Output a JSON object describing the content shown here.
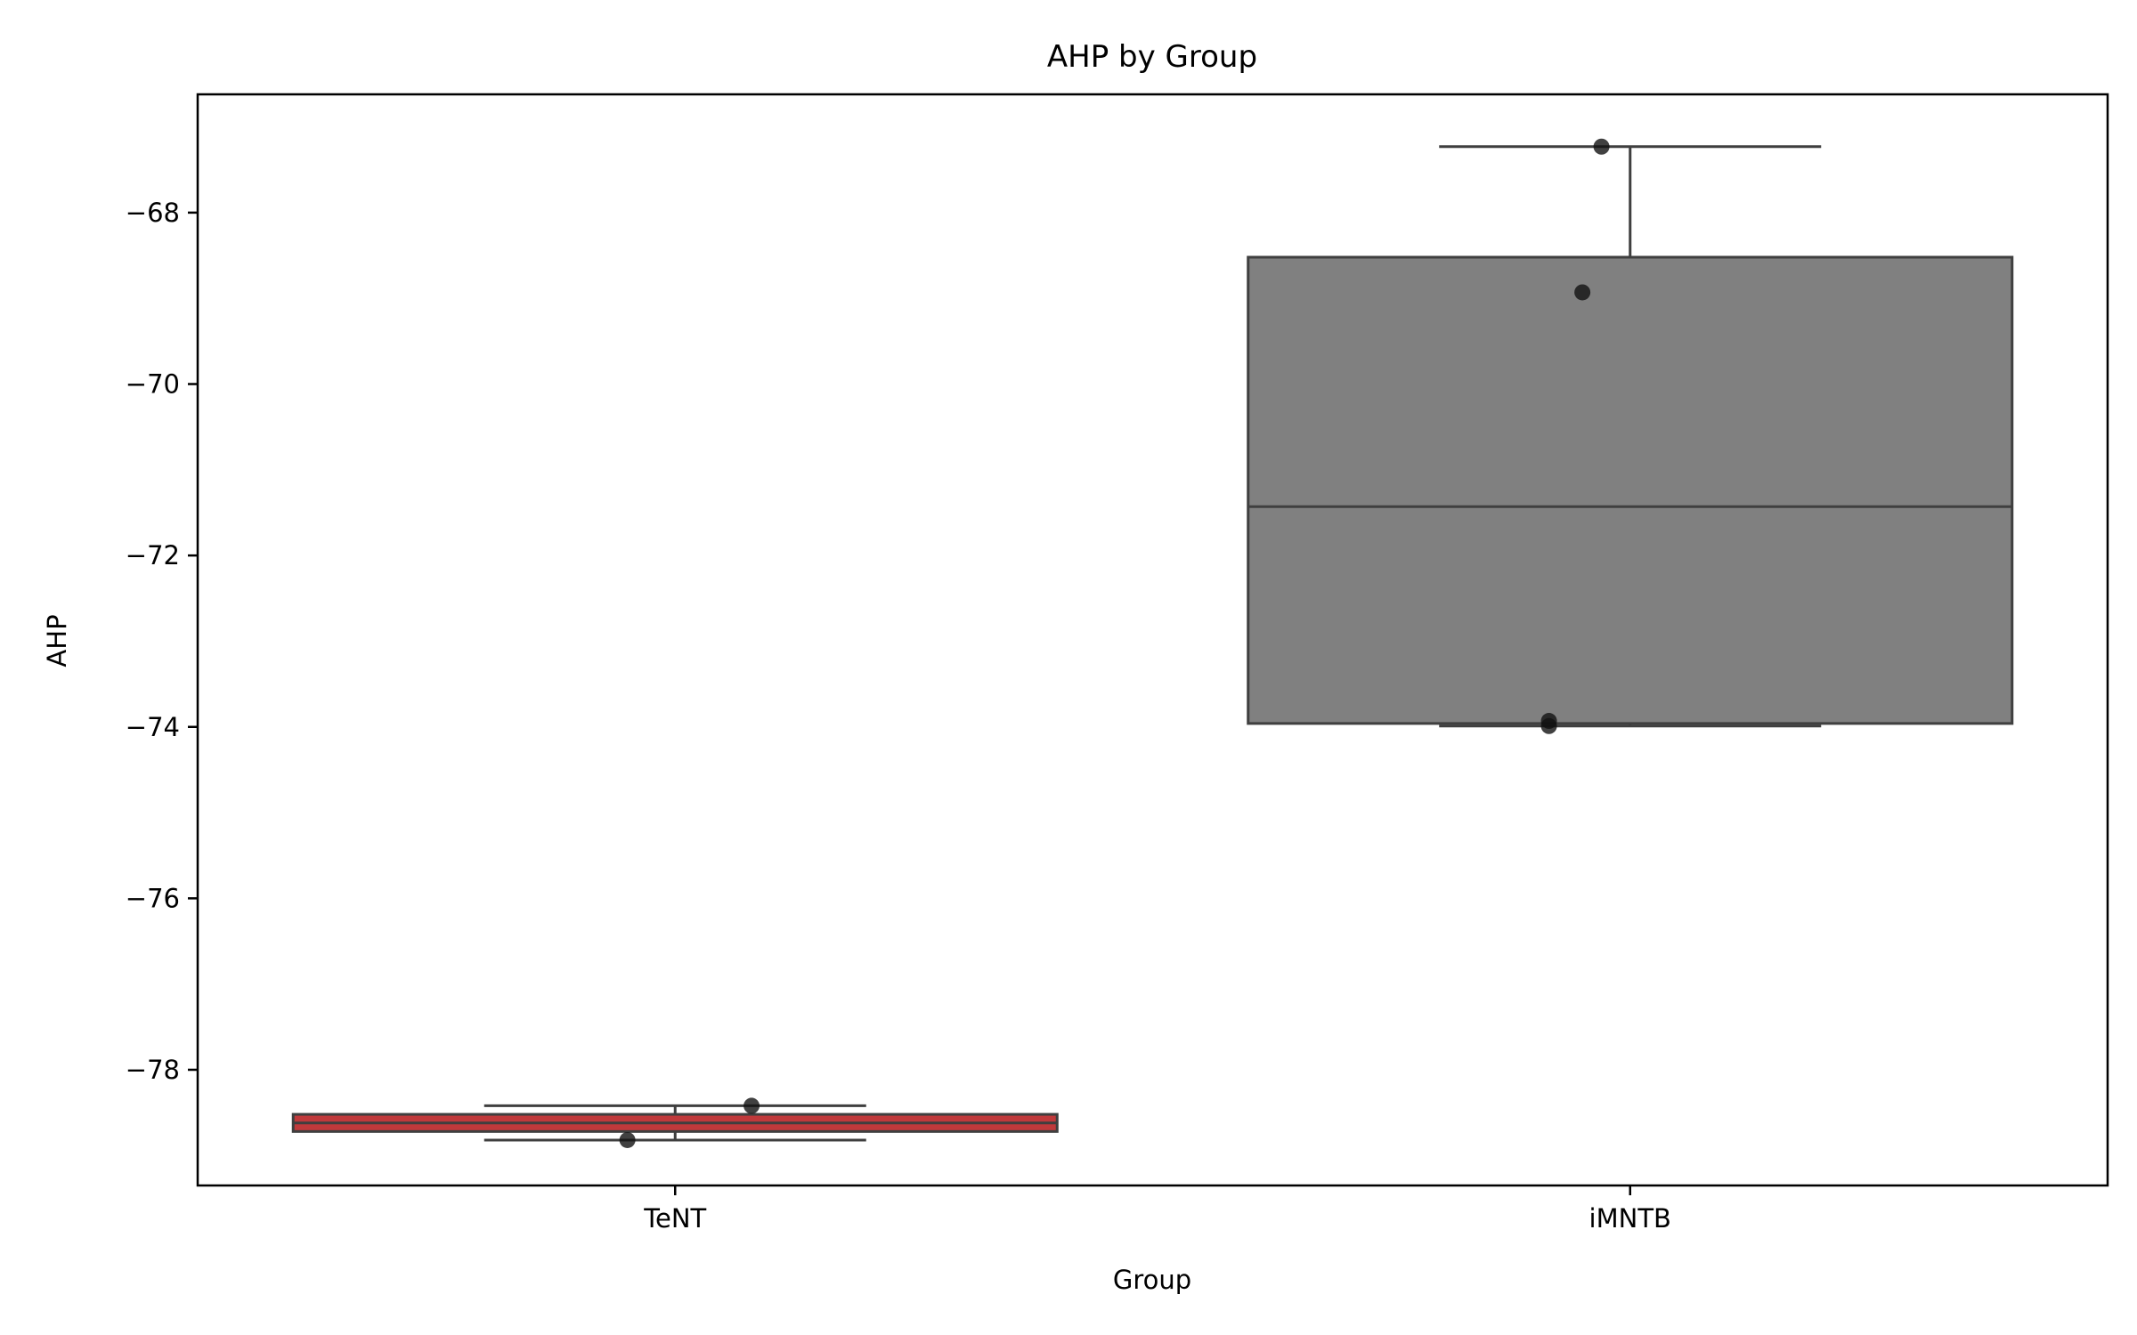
{
  "chart_data": {
    "type": "box",
    "title": "AHP by Group",
    "xlabel": "Group",
    "ylabel": "AHP",
    "ylim": [
      -79.35,
      -66.62
    ],
    "yticks": [
      -68,
      -70,
      -72,
      -74,
      -76,
      -78
    ],
    "categories": [
      "TeNT",
      "iMNTB"
    ],
    "boxes": [
      {
        "category": "TeNT",
        "color": "#c0393b",
        "whisker_low": -78.82,
        "q1": -78.72,
        "median": -78.62,
        "q3": -78.52,
        "whisker_high": -78.42
      },
      {
        "category": "iMNTB",
        "color": "#808080",
        "whisker_low": -73.99,
        "q1": -73.96,
        "median": -71.43,
        "q3": -68.52,
        "whisker_high": -67.23
      }
    ],
    "points": [
      {
        "category": "TeNT",
        "offset": 0.08,
        "y": -78.42
      },
      {
        "category": "TeNT",
        "offset": -0.05,
        "y": -78.82
      },
      {
        "category": "iMNTB",
        "offset": -0.05,
        "y": -68.93
      },
      {
        "category": "iMNTB",
        "offset": -0.03,
        "y": -67.23
      },
      {
        "category": "iMNTB",
        "offset": -0.085,
        "y": -73.93
      },
      {
        "category": "iMNTB",
        "offset": -0.085,
        "y": -73.99
      }
    ],
    "grid": false,
    "legend": "none"
  }
}
